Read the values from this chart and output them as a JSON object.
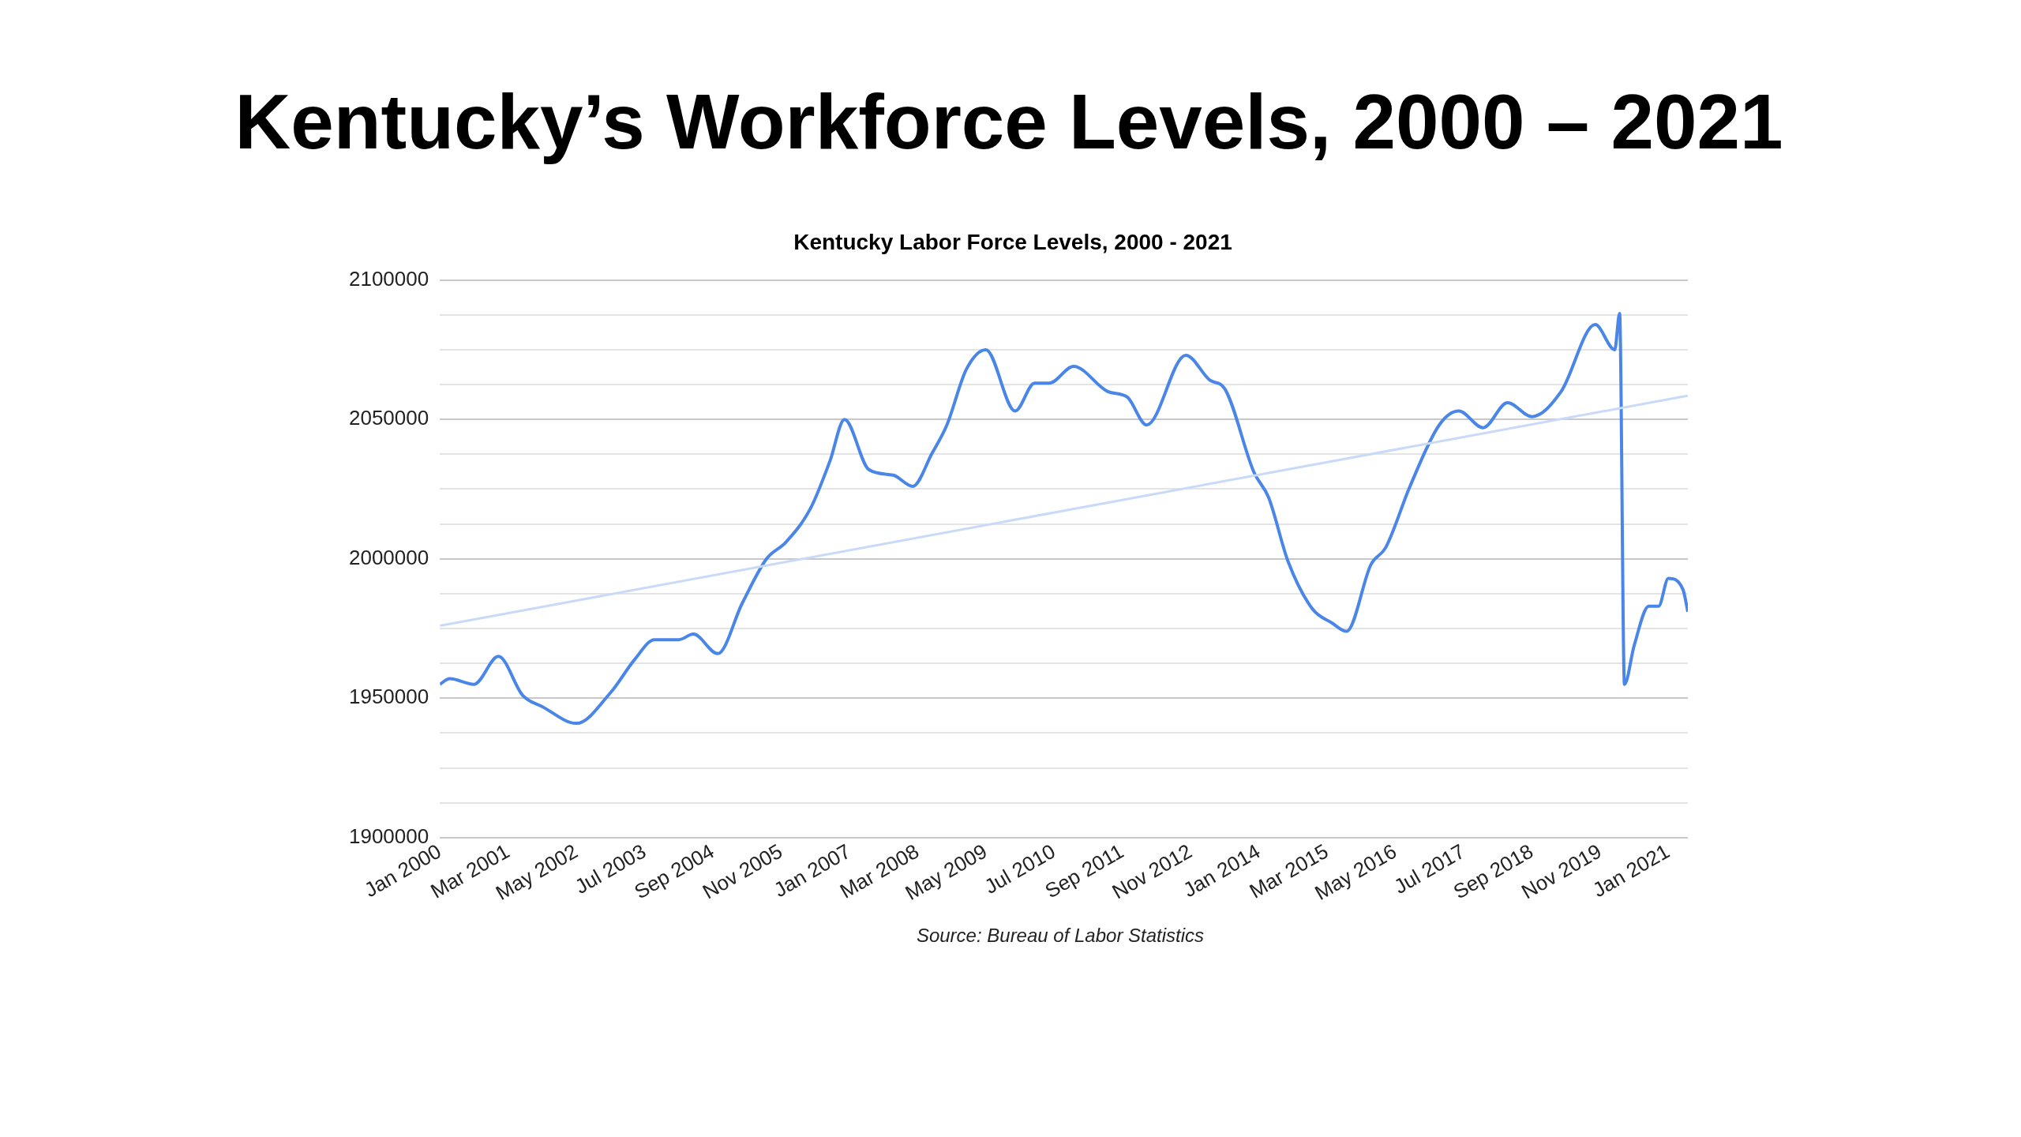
{
  "chart_data": {
    "type": "line",
    "title": "Kentucky’s Workforce Levels, 2000 – 2021",
    "subtitle": "Kentucky Labor Force Levels, 2000 - 2021",
    "annotations": [
      "Source: Bureau of Labor Statistics"
    ],
    "series": [
      {
        "color": "#4a86e8",
        "x": [
          "2000-01",
          "2000-03",
          "2000-08",
          "2001-01",
          "2001-06",
          "2001-10",
          "2002-05",
          "2002-12",
          "2003-05",
          "2003-09",
          "2004-02",
          "2004-05",
          "2004-10",
          "2005-03",
          "2005-08",
          "2005-12",
          "2006-05",
          "2006-09",
          "2006-12",
          "2007-05",
          "2007-10",
          "2008-02",
          "2008-06",
          "2008-09",
          "2009-01",
          "2009-05",
          "2009-11",
          "2010-03",
          "2010-06",
          "2010-11",
          "2011-06",
          "2011-10",
          "2012-02",
          "2012-10",
          "2013-03",
          "2013-06",
          "2013-12",
          "2014-03",
          "2014-07",
          "2014-12",
          "2015-04",
          "2015-07",
          "2015-12",
          "2016-03",
          "2016-08",
          "2017-02",
          "2017-06",
          "2017-11",
          "2018-04",
          "2018-09",
          "2019-03",
          "2019-10",
          "2020-02",
          "2020-03",
          "2020-04",
          "2020-06",
          "2020-09",
          "2020-11",
          "2021-01",
          "2021-04",
          "2021-05"
        ],
        "values": [
          1955000,
          1957000,
          1955000,
          1965000,
          1951000,
          1947000,
          1941000,
          1952000,
          1964000,
          1971000,
          1971000,
          1973000,
          1966000,
          1984000,
          2000000,
          2006000,
          2018000,
          2035000,
          2050000,
          2032000,
          2030000,
          2026000,
          2038000,
          2048000,
          2068000,
          2075000,
          2053000,
          2063000,
          2063000,
          2069000,
          2060000,
          2058000,
          2048000,
          2073000,
          2064000,
          2061000,
          2031000,
          2022000,
          1999000,
          1982000,
          1977000,
          1974000,
          1998000,
          2004000,
          2026000,
          2048000,
          2053000,
          2047000,
          2056000,
          2051000,
          2060000,
          2084000,
          2075000,
          2088000,
          1955000,
          1969000,
          1983000,
          1983000,
          1993000,
          1989000,
          1981000
        ]
      },
      {
        "type": "line",
        "color": "#c9daf8",
        "x": [
          "2000-01",
          "2021-05"
        ],
        "values": [
          1976000,
          2058500
        ]
      }
    ],
    "xlim": [
      "2000-01",
      "2021-05"
    ],
    "xticks": [
      {
        "value": "2000-01",
        "label": "Jan 2000"
      },
      {
        "value": "2001-03",
        "label": "Mar 2001"
      },
      {
        "value": "2002-05",
        "label": "May 2002"
      },
      {
        "value": "2003-07",
        "label": "Jul 2003"
      },
      {
        "value": "2004-09",
        "label": "Sep 2004"
      },
      {
        "value": "2005-11",
        "label": "Nov 2005"
      },
      {
        "value": "2007-01",
        "label": "Jan 2007"
      },
      {
        "value": "2008-03",
        "label": "Mar 2008"
      },
      {
        "value": "2009-05",
        "label": "May 2009"
      },
      {
        "value": "2010-07",
        "label": "Jul 2010"
      },
      {
        "value": "2011-09",
        "label": "Sep 2011"
      },
      {
        "value": "2012-11",
        "label": "Nov 2012"
      },
      {
        "value": "2014-01",
        "label": "Jan 2014"
      },
      {
        "value": "2015-03",
        "label": "Mar 2015"
      },
      {
        "value": "2016-05",
        "label": "May 2016"
      },
      {
        "value": "2017-07",
        "label": "Jul 2017"
      },
      {
        "value": "2018-09",
        "label": "Sep 2018"
      },
      {
        "value": "2019-11",
        "label": "Nov 2019"
      },
      {
        "value": "2021-01",
        "label": "Jan 2021"
      }
    ],
    "ylim": [
      1900000,
      2100000
    ],
    "yticks": [
      1900000,
      {
        "value": 1912500,
        "label": null
      },
      {
        "value": 1925000,
        "label": null
      },
      {
        "value": 1937500,
        "label": null
      },
      1950000,
      {
        "value": 1962500,
        "label": null
      },
      {
        "value": 1975000,
        "label": null
      },
      {
        "value": 1987500,
        "label": null
      },
      2000000,
      {
        "value": 2012500,
        "label": null
      },
      {
        "value": 2025000,
        "label": null
      },
      {
        "value": 2037500,
        "label": null
      },
      2050000,
      {
        "value": 2062500,
        "label": null
      },
      {
        "value": 2075000,
        "label": null
      },
      {
        "value": 2087500,
        "label": null
      },
      2100000
    ],
    "grid": "y",
    "legend": false,
    "marker": "none"
  }
}
